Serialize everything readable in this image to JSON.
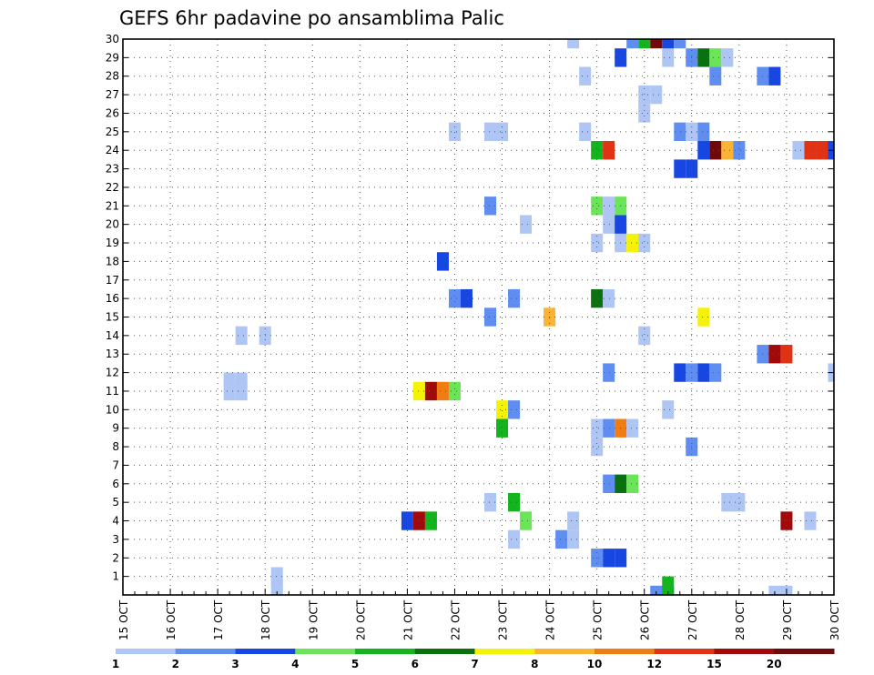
{
  "chart_data": {
    "type": "heatmap",
    "title": "GEFS 6hr padavine po ansamblima Palic",
    "xlabel": "",
    "ylabel": "",
    "x_ticks": [
      "15 OCT",
      "16 OCT",
      "17 OCT",
      "18 OCT",
      "19 OCT",
      "20 OCT",
      "21 OCT",
      "22 OCT",
      "23 OCT",
      "24 OCT",
      "25 OCT",
      "26 OCT",
      "27 OCT",
      "28 OCT",
      "29 OCT",
      "30 OCT"
    ],
    "xlim": [
      0,
      60
    ],
    "y_ticks": [
      "1",
      "2",
      "3",
      "4",
      "5",
      "6",
      "7",
      "8",
      "9",
      "10",
      "11",
      "12",
      "13",
      "14",
      "15",
      "16",
      "17",
      "18",
      "19",
      "20",
      "21",
      "22",
      "23",
      "24",
      "25",
      "26",
      "27",
      "28",
      "29",
      "30"
    ],
    "ylim": [
      0,
      30
    ],
    "grid": true,
    "colorbar": {
      "labels": [
        "1",
        "2",
        "3",
        "4",
        "5",
        "6",
        "7",
        "8",
        "10",
        "12",
        "15",
        "20"
      ],
      "colors": [
        "#afc5f3",
        "#5f8ef0",
        "#1846e0",
        "#6ce45a",
        "#13b41d",
        "#0a7010",
        "#f5f20a",
        "#fbb335",
        "#f07d14",
        "#e03214",
        "#a00a0a",
        "#6e0a0a"
      ]
    },
    "cells": [
      {
        "step": 45,
        "member": 0,
        "cls": 2
      },
      {
        "step": 46,
        "member": 0,
        "cls": 3
      },
      {
        "step": 46,
        "member": 0.5,
        "cls": 5
      },
      {
        "step": 55,
        "member": 0,
        "cls": 1
      },
      {
        "step": 56,
        "member": 0,
        "cls": 1
      },
      {
        "step": 13,
        "member": 1,
        "cls": 1
      },
      {
        "step": 13,
        "member": 0.5,
        "cls": 1
      },
      {
        "step": 40,
        "member": 2,
        "cls": 2
      },
      {
        "step": 41,
        "member": 2,
        "cls": 3
      },
      {
        "step": 42,
        "member": 2,
        "cls": 3
      },
      {
        "step": 33,
        "member": 3,
        "cls": 1
      },
      {
        "step": 37,
        "member": 3,
        "cls": 2
      },
      {
        "step": 38,
        "member": 3,
        "cls": 1
      },
      {
        "step": 24,
        "member": 4,
        "cls": 3
      },
      {
        "step": 25,
        "member": 4,
        "cls": 11
      },
      {
        "step": 26,
        "member": 4,
        "cls": 5
      },
      {
        "step": 34,
        "member": 4,
        "cls": 4
      },
      {
        "step": 38,
        "member": 4,
        "cls": 1
      },
      {
        "step": 56,
        "member": 4,
        "cls": 11
      },
      {
        "step": 58,
        "member": 4,
        "cls": 1
      },
      {
        "step": 31,
        "member": 5,
        "cls": 1
      },
      {
        "step": 33,
        "member": 5,
        "cls": 5
      },
      {
        "step": 51,
        "member": 5,
        "cls": 1
      },
      {
        "step": 52,
        "member": 5,
        "cls": 1
      },
      {
        "step": 41,
        "member": 6,
        "cls": 2
      },
      {
        "step": 42,
        "member": 6,
        "cls": 6
      },
      {
        "step": 43,
        "member": 6,
        "cls": 4
      },
      {
        "step": 48,
        "member": 8,
        "cls": 2
      },
      {
        "step": 40,
        "member": 8,
        "cls": 1
      },
      {
        "step": 40,
        "member": 9,
        "cls": 1
      },
      {
        "step": 41,
        "member": 9,
        "cls": 2
      },
      {
        "step": 42,
        "member": 9,
        "cls": 9
      },
      {
        "step": 43,
        "member": 9,
        "cls": 1
      },
      {
        "step": 32,
        "member": 9,
        "cls": 5
      },
      {
        "step": 32,
        "member": 10,
        "cls": 7
      },
      {
        "step": 33,
        "member": 10,
        "cls": 2
      },
      {
        "step": 46,
        "member": 10,
        "cls": 1
      },
      {
        "step": 9,
        "member": 11,
        "cls": 1
      },
      {
        "step": 10,
        "member": 11,
        "cls": 1
      },
      {
        "step": 25,
        "member": 11,
        "cls": 7
      },
      {
        "step": 26,
        "member": 11,
        "cls": 11
      },
      {
        "step": 27,
        "member": 11,
        "cls": 9
      },
      {
        "step": 28,
        "member": 11,
        "cls": 4
      },
      {
        "step": 9,
        "member": 11.5,
        "cls": 1
      },
      {
        "step": 10,
        "member": 11.5,
        "cls": 1
      },
      {
        "step": 41,
        "member": 12,
        "cls": 2
      },
      {
        "step": 47,
        "member": 12,
        "cls": 3
      },
      {
        "step": 48,
        "member": 12,
        "cls": 2
      },
      {
        "step": 49,
        "member": 12,
        "cls": 3
      },
      {
        "step": 50,
        "member": 12,
        "cls": 2
      },
      {
        "step": 60,
        "member": 12,
        "cls": 1
      },
      {
        "step": 54,
        "member": 13,
        "cls": 2
      },
      {
        "step": 55,
        "member": 13,
        "cls": 11
      },
      {
        "step": 56,
        "member": 13,
        "cls": 10
      },
      {
        "step": 10,
        "member": 14,
        "cls": 1
      },
      {
        "step": 12,
        "member": 14,
        "cls": 1
      },
      {
        "step": 44,
        "member": 14,
        "cls": 1
      },
      {
        "step": 31,
        "member": 15,
        "cls": 2
      },
      {
        "step": 36,
        "member": 15,
        "cls": 8
      },
      {
        "step": 49,
        "member": 15,
        "cls": 7
      },
      {
        "step": 28,
        "member": 16,
        "cls": 2
      },
      {
        "step": 29,
        "member": 16,
        "cls": 3
      },
      {
        "step": 33,
        "member": 16,
        "cls": 2
      },
      {
        "step": 40,
        "member": 16,
        "cls": 6
      },
      {
        "step": 41,
        "member": 16,
        "cls": 1
      },
      {
        "step": 27,
        "member": 18,
        "cls": 3
      },
      {
        "step": 40,
        "member": 19,
        "cls": 1
      },
      {
        "step": 42,
        "member": 19,
        "cls": 1
      },
      {
        "step": 43,
        "member": 19,
        "cls": 7
      },
      {
        "step": 44,
        "member": 19,
        "cls": 1
      },
      {
        "step": 34,
        "member": 20,
        "cls": 1
      },
      {
        "step": 41,
        "member": 20,
        "cls": 1
      },
      {
        "step": 42,
        "member": 20,
        "cls": 3
      },
      {
        "step": 31,
        "member": 21,
        "cls": 2
      },
      {
        "step": 40,
        "member": 21,
        "cls": 4
      },
      {
        "step": 41,
        "member": 21,
        "cls": 1
      },
      {
        "step": 42,
        "member": 21,
        "cls": 4
      },
      {
        "step": 47,
        "member": 23,
        "cls": 3
      },
      {
        "step": 48,
        "member": 23,
        "cls": 3
      },
      {
        "step": 40,
        "member": 24,
        "cls": 5
      },
      {
        "step": 41,
        "member": 24,
        "cls": 10
      },
      {
        "step": 49,
        "member": 24,
        "cls": 3
      },
      {
        "step": 50,
        "member": 24,
        "cls": 12
      },
      {
        "step": 51,
        "member": 24,
        "cls": 8
      },
      {
        "step": 52,
        "member": 24,
        "cls": 2
      },
      {
        "step": 57,
        "member": 24,
        "cls": 1
      },
      {
        "step": 58,
        "member": 24,
        "cls": 10
      },
      {
        "step": 59,
        "member": 24,
        "cls": 10
      },
      {
        "step": 60,
        "member": 24,
        "cls": 3
      },
      {
        "step": 28,
        "member": 25,
        "cls": 1
      },
      {
        "step": 31,
        "member": 25,
        "cls": 1
      },
      {
        "step": 32,
        "member": 25,
        "cls": 1
      },
      {
        "step": 39,
        "member": 25,
        "cls": 1
      },
      {
        "step": 47,
        "member": 25,
        "cls": 2
      },
      {
        "step": 48,
        "member": 25,
        "cls": 1
      },
      {
        "step": 49,
        "member": 25,
        "cls": 2
      },
      {
        "step": 44,
        "member": 26,
        "cls": 1
      },
      {
        "step": 44,
        "member": 27,
        "cls": 1
      },
      {
        "step": 45,
        "member": 27,
        "cls": 1
      },
      {
        "step": 39,
        "member": 28,
        "cls": 1
      },
      {
        "step": 50,
        "member": 28,
        "cls": 2
      },
      {
        "step": 54,
        "member": 28,
        "cls": 2
      },
      {
        "step": 55,
        "member": 28,
        "cls": 3
      },
      {
        "step": 42,
        "member": 29,
        "cls": 3
      },
      {
        "step": 46,
        "member": 29,
        "cls": 1
      },
      {
        "step": 48,
        "member": 29,
        "cls": 2
      },
      {
        "step": 49,
        "member": 29,
        "cls": 6
      },
      {
        "step": 50,
        "member": 29,
        "cls": 4
      },
      {
        "step": 51,
        "member": 29,
        "cls": 1
      },
      {
        "step": 38,
        "member": 30,
        "cls": 1
      },
      {
        "step": 43,
        "member": 30,
        "cls": 2
      },
      {
        "step": 44,
        "member": 30,
        "cls": 5
      },
      {
        "step": 45,
        "member": 30,
        "cls": 12
      },
      {
        "step": 46,
        "member": 30,
        "cls": 3
      },
      {
        "step": 47,
        "member": 30,
        "cls": 2
      }
    ]
  }
}
